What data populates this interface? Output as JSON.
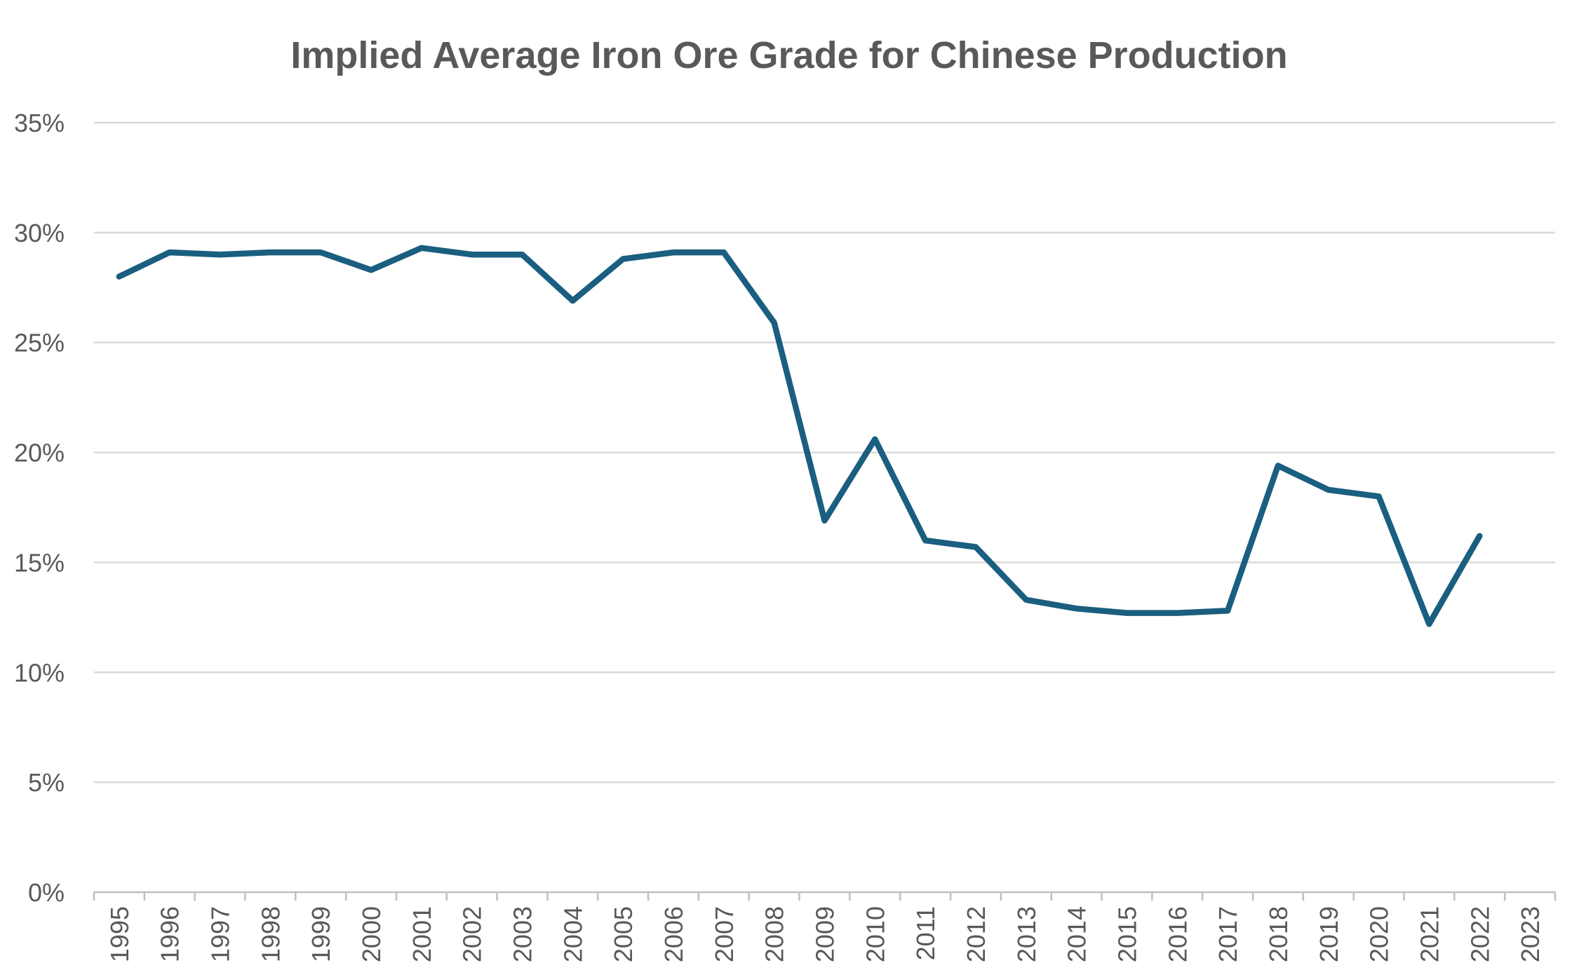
{
  "chart_data": {
    "type": "line",
    "title": "Implied Average Iron Ore Grade for Chinese Production",
    "xlabel": "",
    "ylabel": "",
    "ylim": [
      0,
      0.35
    ],
    "yticks": [
      0,
      0.05,
      0.1,
      0.15,
      0.2,
      0.25,
      0.3,
      0.35
    ],
    "ytick_labels": [
      "0%",
      "5%",
      "10%",
      "15%",
      "20%",
      "25%",
      "30%",
      "35%"
    ],
    "categories": [
      "1995",
      "1996",
      "1997",
      "1998",
      "1999",
      "2000",
      "2001",
      "2002",
      "2003",
      "2004",
      "2005",
      "2006",
      "2007",
      "2008",
      "2009",
      "2010",
      "2011",
      "2012",
      "2013",
      "2014",
      "2015",
      "2016",
      "2017",
      "2018",
      "2019",
      "2020",
      "2021",
      "2022",
      "2023"
    ],
    "series": [
      {
        "name": "Implied Average Iron Ore Grade",
        "color": "#1a5e80",
        "values": [
          0.28,
          0.291,
          0.29,
          0.291,
          0.291,
          0.283,
          0.293,
          0.29,
          0.29,
          0.269,
          0.288,
          0.291,
          0.291,
          0.259,
          0.169,
          0.206,
          0.16,
          0.157,
          0.133,
          0.129,
          0.127,
          0.127,
          0.128,
          0.194,
          0.183,
          0.18,
          0.122,
          0.162,
          null
        ]
      }
    ],
    "grid": true,
    "legend": "none"
  }
}
